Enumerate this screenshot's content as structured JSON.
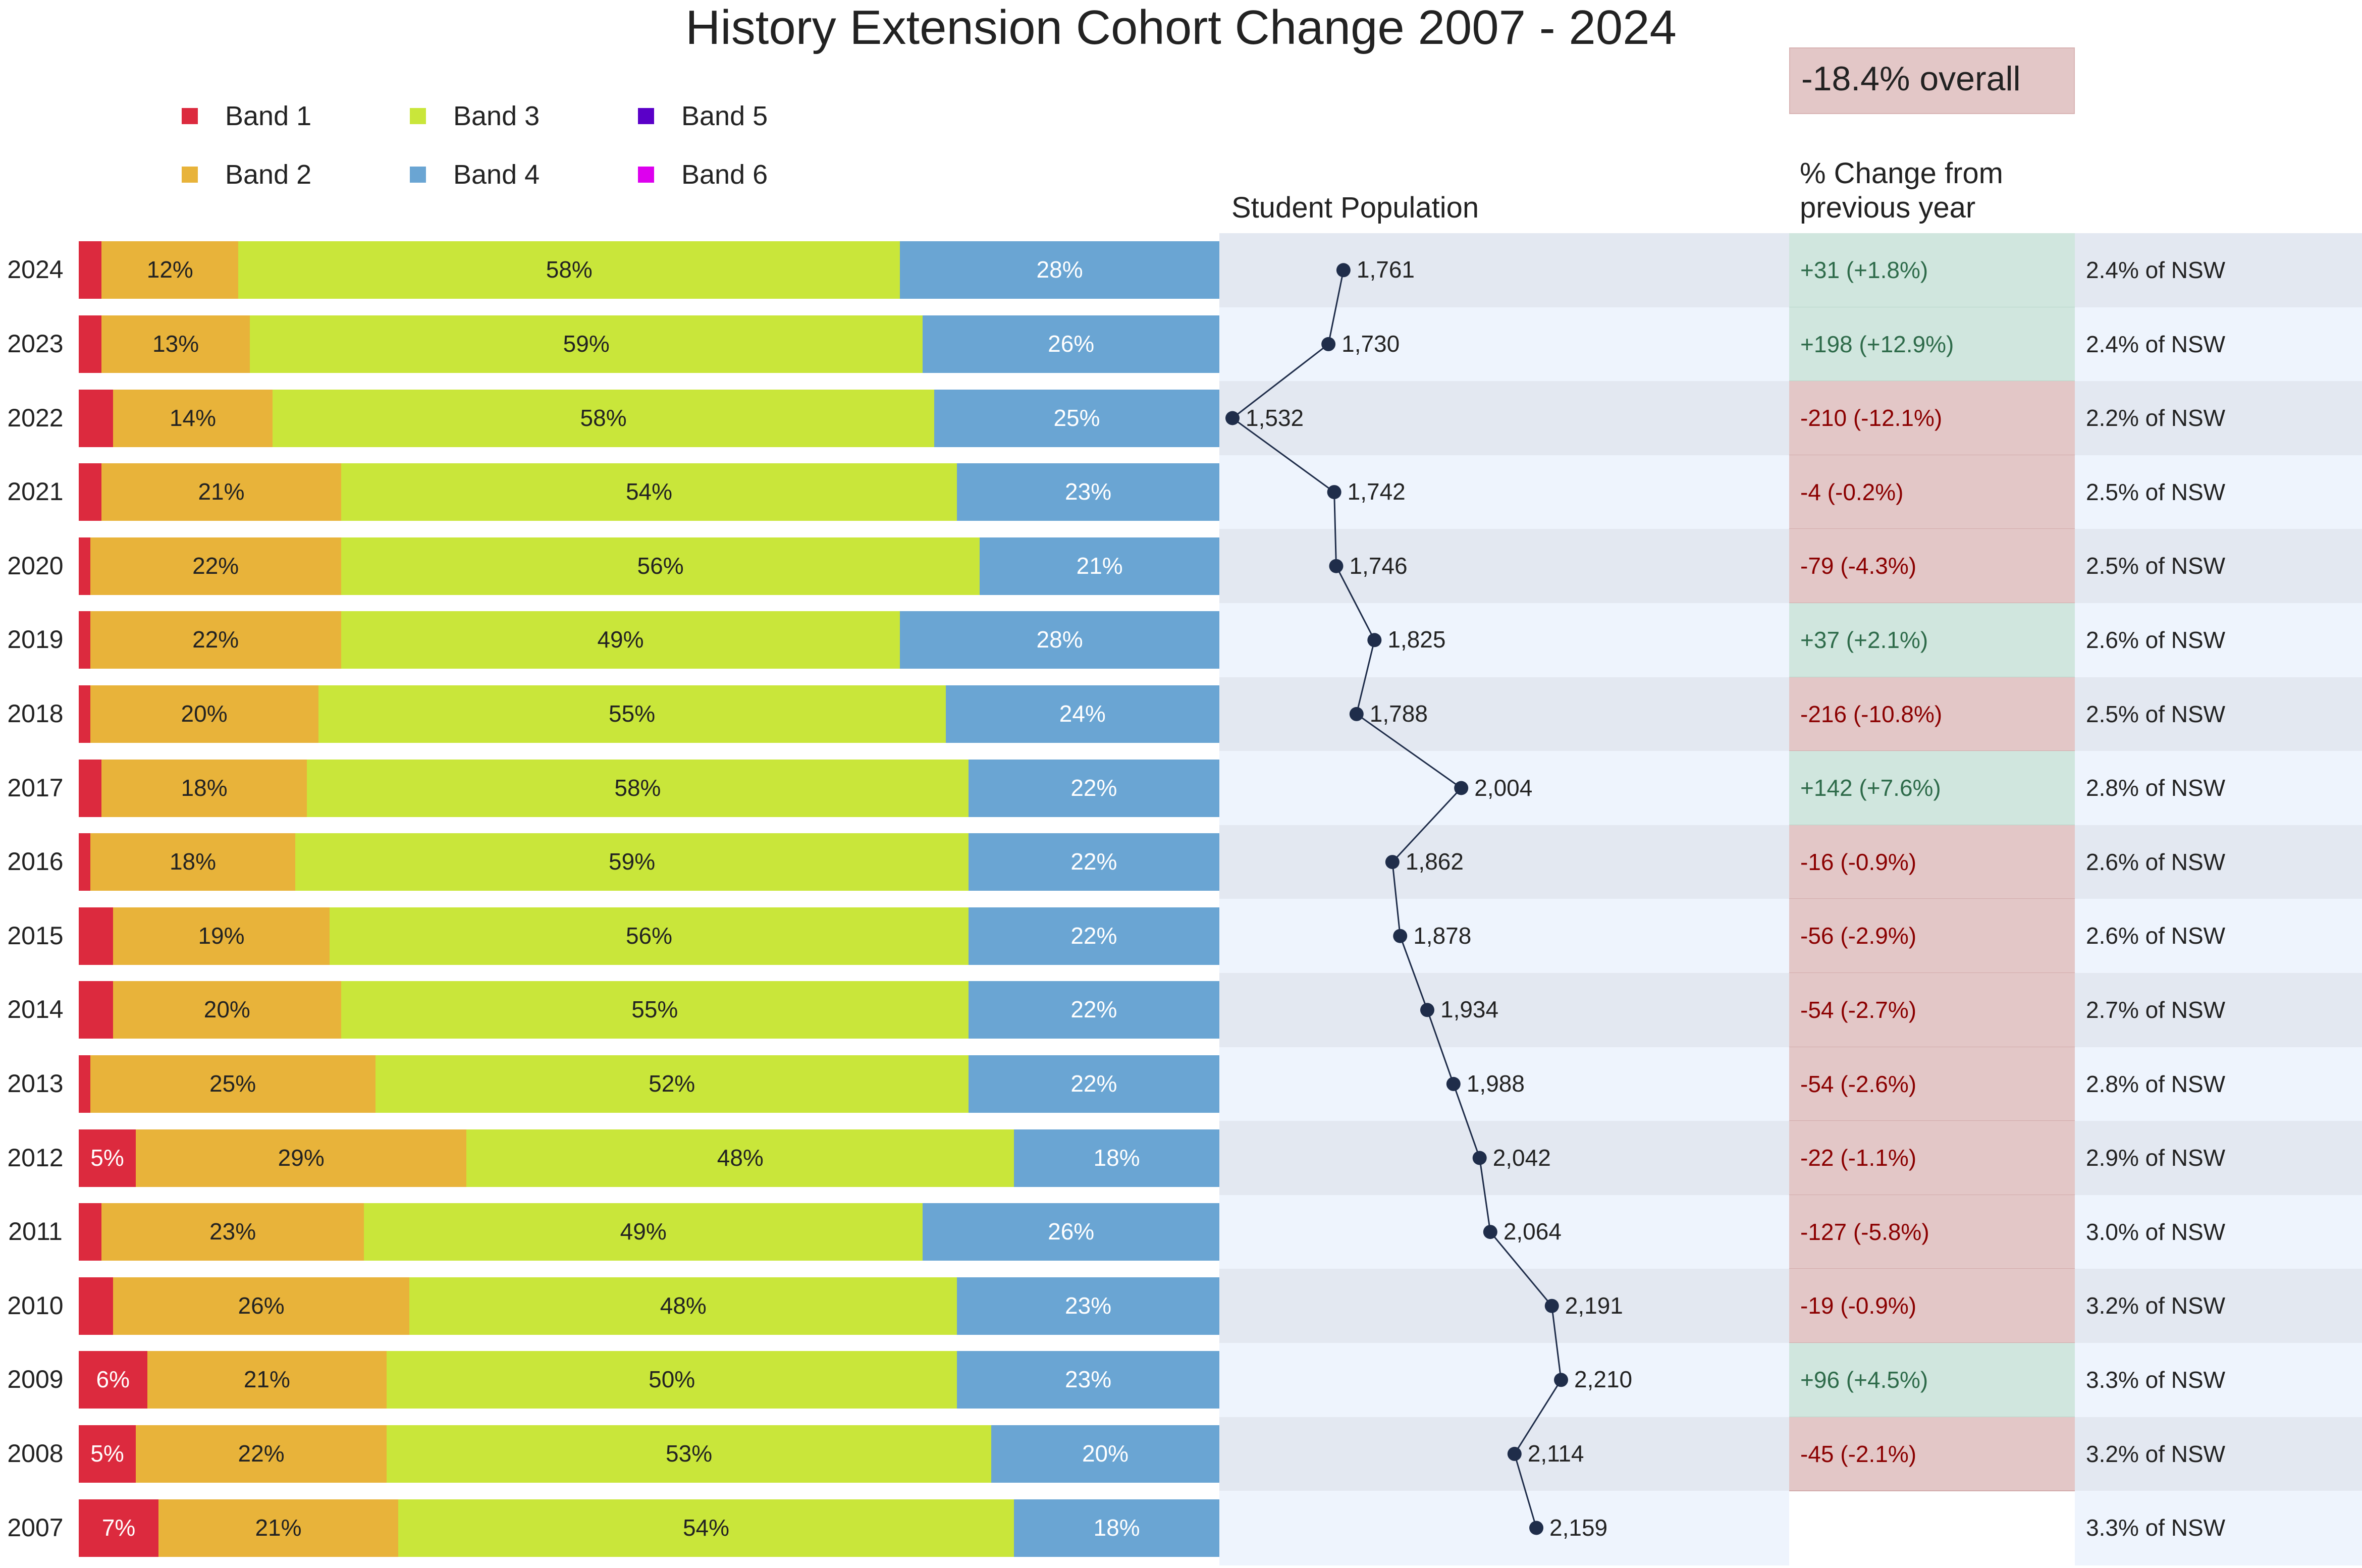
{
  "title": "History Extension Cohort Change 2007 - 2024",
  "overall_change": "-18.4% overall",
  "headers": {
    "population": "Student Population",
    "change": "% Change from\nprevious year"
  },
  "colors": {
    "band1": "#dc2a3e",
    "band2": "#e8b33a",
    "band3": "#c9e63a",
    "band4": "#6aa5d3",
    "band5": "#5a00c8",
    "band6": "#dd00ee",
    "positive_bg": "#d0e6de",
    "negative_bg": "#e3c7c7",
    "positive_text": "#2e6b4a",
    "negative_text": "#8b0000",
    "row_bg_dark": "#e3e8f1",
    "row_bg_light": "#eef4fd",
    "line": "#1f2d4a"
  },
  "chart_data": {
    "type": "bar",
    "orientation": "horizontal-stacked-percent",
    "legend": [
      "Band 1",
      "Band 2",
      "Band 3",
      "Band 4",
      "Band 5",
      "Band 6"
    ],
    "rows": [
      {
        "year": "2024",
        "bands": [
          2,
          12,
          58,
          28,
          0,
          0
        ],
        "labels": [
          "",
          "12%",
          "58%",
          "28%"
        ],
        "population": 1761,
        "population_label": "1,761",
        "change": "+31  (+1.8%)",
        "change_sign": "positive",
        "share": "2.4% of NSW"
      },
      {
        "year": "2023",
        "bands": [
          2,
          13,
          59,
          26,
          0,
          0
        ],
        "labels": [
          "",
          "13%",
          "59%",
          "26%"
        ],
        "population": 1730,
        "population_label": "1,730",
        "change": "+198  (+12.9%)",
        "change_sign": "positive",
        "share": "2.4% of NSW"
      },
      {
        "year": "2022",
        "bands": [
          3,
          14,
          58,
          25,
          0,
          0
        ],
        "labels": [
          "",
          "14%",
          "58%",
          "25%"
        ],
        "population": 1532,
        "population_label": "1,532",
        "change": "-210  (-12.1%)",
        "change_sign": "negative",
        "share": "2.2% of NSW"
      },
      {
        "year": "2021",
        "bands": [
          2,
          21,
          54,
          23,
          0,
          0
        ],
        "labels": [
          "",
          "21%",
          "54%",
          "23%"
        ],
        "population": 1742,
        "population_label": "1,742",
        "change": "-4  (-0.2%)",
        "change_sign": "negative",
        "share": "2.5% of NSW"
      },
      {
        "year": "2020",
        "bands": [
          1,
          22,
          56,
          21,
          0,
          0
        ],
        "labels": [
          "",
          "22%",
          "56%",
          "21%"
        ],
        "population": 1746,
        "population_label": "1,746",
        "change": "-79  (-4.3%)",
        "change_sign": "negative",
        "share": "2.5% of NSW"
      },
      {
        "year": "2019",
        "bands": [
          1,
          22,
          49,
          28,
          0,
          0
        ],
        "labels": [
          "",
          "22%",
          "49%",
          "28%"
        ],
        "population": 1825,
        "population_label": "1,825",
        "change": "+37  (+2.1%)",
        "change_sign": "positive",
        "share": "2.6% of NSW"
      },
      {
        "year": "2018",
        "bands": [
          1,
          20,
          55,
          24,
          0,
          0
        ],
        "labels": [
          "",
          "20%",
          "55%",
          "24%"
        ],
        "population": 1788,
        "population_label": "1,788",
        "change": "-216  (-10.8%)",
        "change_sign": "negative",
        "share": "2.5% of NSW"
      },
      {
        "year": "2017",
        "bands": [
          2,
          18,
          58,
          22,
          0,
          0
        ],
        "labels": [
          "",
          "18%",
          "58%",
          "22%"
        ],
        "population": 2004,
        "population_label": "2,004",
        "change": "+142  (+7.6%)",
        "change_sign": "positive",
        "share": "2.8% of NSW"
      },
      {
        "year": "2016",
        "bands": [
          1,
          18,
          59,
          22,
          0,
          0
        ],
        "labels": [
          "",
          "18%",
          "59%",
          "22%"
        ],
        "population": 1862,
        "population_label": "1,862",
        "change": "-16  (-0.9%)",
        "change_sign": "negative",
        "share": "2.6% of NSW"
      },
      {
        "year": "2015",
        "bands": [
          3,
          19,
          56,
          22,
          0,
          0
        ],
        "labels": [
          "",
          "19%",
          "56%",
          "22%"
        ],
        "population": 1878,
        "population_label": "1,878",
        "change": "-56  (-2.9%)",
        "change_sign": "negative",
        "share": "2.6% of NSW"
      },
      {
        "year": "2014",
        "bands": [
          3,
          20,
          55,
          22,
          0,
          0
        ],
        "labels": [
          "",
          "20%",
          "55%",
          "22%"
        ],
        "population": 1934,
        "population_label": "1,934",
        "change": "-54  (-2.7%)",
        "change_sign": "negative",
        "share": "2.7% of NSW"
      },
      {
        "year": "2013",
        "bands": [
          1,
          25,
          52,
          22,
          0,
          0
        ],
        "labels": [
          "",
          "25%",
          "52%",
          "22%"
        ],
        "population": 1988,
        "population_label": "1,988",
        "change": "-54  (-2.6%)",
        "change_sign": "negative",
        "share": "2.8% of NSW"
      },
      {
        "year": "2012",
        "bands": [
          5,
          29,
          48,
          18,
          0,
          0
        ],
        "labels": [
          "5%",
          "29%",
          "48%",
          "18%"
        ],
        "population": 2042,
        "population_label": "2,042",
        "change": "-22  (-1.1%)",
        "change_sign": "negative",
        "share": "2.9% of NSW"
      },
      {
        "year": "2011",
        "bands": [
          2,
          23,
          49,
          26,
          0,
          0
        ],
        "labels": [
          "",
          "23%",
          "49%",
          "26%"
        ],
        "population": 2064,
        "population_label": "2,064",
        "change": "-127  (-5.8%)",
        "change_sign": "negative",
        "share": "3.0% of NSW"
      },
      {
        "year": "2010",
        "bands": [
          3,
          26,
          48,
          23,
          0,
          0
        ],
        "labels": [
          "",
          "26%",
          "48%",
          "23%"
        ],
        "population": 2191,
        "population_label": "2,191",
        "change": "-19  (-0.9%)",
        "change_sign": "negative",
        "share": "3.2% of NSW"
      },
      {
        "year": "2009",
        "bands": [
          6,
          21,
          50,
          23,
          0,
          0
        ],
        "labels": [
          "6%",
          "21%",
          "50%",
          "23%"
        ],
        "population": 2210,
        "population_label": "2,210",
        "change": "+96  (+4.5%)",
        "change_sign": "positive",
        "share": "3.3% of NSW"
      },
      {
        "year": "2008",
        "bands": [
          5,
          22,
          53,
          20,
          0,
          0
        ],
        "labels": [
          "5%",
          "22%",
          "53%",
          "20%"
        ],
        "population": 2114,
        "population_label": "2,114",
        "change": "-45  (-2.1%)",
        "change_sign": "negative",
        "share": "3.2% of NSW"
      },
      {
        "year": "2007",
        "bands": [
          7,
          21,
          54,
          18,
          0,
          0
        ],
        "labels": [
          "7%",
          "21%",
          "54%",
          "18%"
        ],
        "population": 2159,
        "population_label": "2,159",
        "change": "",
        "change_sign": "none",
        "share": "3.3% of NSW"
      }
    ]
  }
}
